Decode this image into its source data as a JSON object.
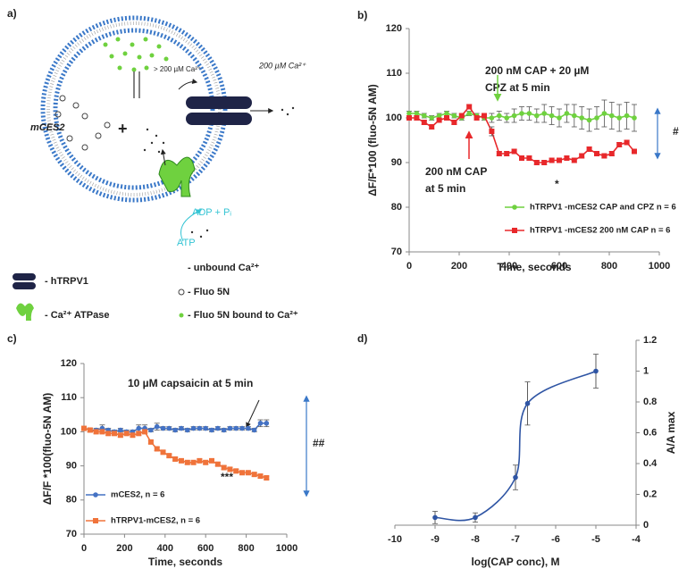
{
  "diagram": {
    "label": "a)",
    "outside_ca": "200 µM Ca²⁺",
    "inside_ca": "> 200 µM Ca²⁺",
    "protein": "mCES2",
    "products": "ADP + Pᵢ",
    "substrate": "ATP",
    "legend": [
      "- hTRPV1",
      "- Ca²⁺ ATPase",
      "- unbound Ca²⁺",
      "- Fluo 5N",
      "- Fluo 5N bound to Ca²⁺"
    ]
  },
  "chart_data": [
    {
      "type": "line",
      "label": "b)",
      "xlabel": "Time, seconds",
      "ylabel": "ΔF/F*100 (fluo-5N AM)",
      "xlim": [
        0,
        1000
      ],
      "xticks": [
        0,
        200,
        400,
        600,
        800,
        1000
      ],
      "ylim": [
        70,
        120
      ],
      "yticks": [
        70,
        80,
        90,
        100,
        110,
        120
      ],
      "legend_loc": "lower right",
      "annotations": [
        "200 nM CAP + 20 µM",
        "CPZ  at 5 min",
        "200 nM CAP",
        "at 5 min",
        "*",
        "#"
      ],
      "x": [
        0,
        30,
        60,
        90,
        120,
        150,
        180,
        210,
        240,
        270,
        300,
        330,
        360,
        390,
        420,
        450,
        480,
        510,
        540,
        570,
        600,
        630,
        660,
        690,
        720,
        750,
        780,
        810,
        840,
        870,
        900
      ],
      "series": [
        {
          "name": "hTRPV1 -mCES2  CAP and CPZ n = 6",
          "color": "#6fd13f",
          "marker": "circle",
          "values": [
            101,
            101,
            100.5,
            100,
            100.5,
            101,
            100.5,
            100,
            101,
            100.5,
            100,
            100,
            100.5,
            100,
            100.5,
            101,
            101,
            100.5,
            101,
            100.5,
            100,
            101,
            100.5,
            100,
            99.5,
            100,
            101,
            100.5,
            100,
            100.5,
            100
          ],
          "errors": [
            0.5,
            0.5,
            0.5,
            0.5,
            0.5,
            0.5,
            0.5,
            0.5,
            0.5,
            0.5,
            0.5,
            1,
            1,
            1,
            1.5,
            1.5,
            1.5,
            1.5,
            2,
            2,
            2,
            2,
            2.5,
            2.5,
            2.5,
            2.5,
            3,
            3,
            3,
            3,
            3
          ]
        },
        {
          "name": "hTRPV1 -mCES2   200 nM CAP  n = 6",
          "color": "#e8282b",
          "marker": "square",
          "values": [
            100,
            100,
            99,
            98,
            99.5,
            100,
            99,
            100.5,
            102.5,
            100,
            100.5,
            97,
            92,
            92,
            92.5,
            91,
            91,
            90,
            90,
            90.5,
            90.5,
            91,
            90.5,
            91.5,
            93,
            92,
            91.5,
            92,
            94,
            94.5,
            92.5
          ],
          "errors": [
            0.5,
            0.5,
            0.5,
            0.5,
            0.5,
            0.5,
            0.5,
            0.5,
            0.5,
            0.5,
            0.5,
            1,
            0.5,
            0.5,
            0.5,
            0.5,
            0.5,
            0.5,
            0.5,
            0.5,
            0.5,
            0.5,
            0.5,
            0.5,
            0.5,
            0.5,
            0.5,
            0.5,
            0.5,
            0.5,
            0.5
          ]
        }
      ]
    },
    {
      "type": "line",
      "label": "c)",
      "xlabel": "Time, seconds",
      "ylabel": "ΔF/F *100(fluo-5N AM)",
      "xlim": [
        0,
        1000
      ],
      "xticks": [
        0,
        200,
        400,
        600,
        800,
        1000
      ],
      "ylim": [
        70,
        120
      ],
      "yticks": [
        70,
        80,
        90,
        100,
        110,
        120
      ],
      "legend_loc": "lower left",
      "annotations": [
        "10 µM capsaicin at 5 min",
        "***",
        "##"
      ],
      "x": [
        0,
        30,
        60,
        90,
        120,
        150,
        180,
        210,
        240,
        270,
        300,
        330,
        360,
        390,
        420,
        450,
        480,
        510,
        540,
        570,
        600,
        630,
        660,
        690,
        720,
        750,
        780,
        810,
        840,
        870,
        900
      ],
      "series": [
        {
          "name": "mCES2, n = 6",
          "color": "#4472c4",
          "marker": "circle",
          "values": [
            101,
            100.5,
            100.5,
            101,
            100.5,
            100,
            100.5,
            100,
            100,
            101,
            101,
            100.5,
            101.5,
            101,
            101,
            100.5,
            101,
            100.5,
            101,
            101,
            101,
            100.5,
            101,
            100.5,
            101,
            101,
            101,
            101,
            100.5,
            102.5,
            102.5
          ],
          "errors": [
            0.5,
            0.5,
            0.5,
            1,
            0.5,
            0.5,
            0.5,
            0.5,
            0.5,
            1,
            1,
            0.5,
            1,
            0.5,
            0.5,
            0.5,
            0.5,
            0.5,
            0.5,
            0.5,
            0.5,
            0.5,
            0.5,
            0.5,
            0.5,
            0.5,
            0.5,
            0.5,
            0.5,
            1,
            1
          ]
        },
        {
          "name": "hTRPV1-mCES2, n = 6",
          "color": "#f0733a",
          "marker": "square",
          "values": [
            101,
            100.5,
            100,
            100,
            99.5,
            99.5,
            99,
            99.5,
            99,
            99.5,
            100,
            97,
            95,
            94,
            93,
            92,
            91.5,
            91,
            91,
            91.5,
            91,
            91.5,
            90.5,
            89.5,
            89,
            88.5,
            88,
            88,
            87.5,
            87,
            86.5
          ],
          "errors": [
            0.5,
            0.5,
            0.5,
            0.5,
            0.5,
            0.5,
            0.5,
            0.5,
            0.5,
            0.5,
            0.5,
            0.5,
            0.5,
            0.5,
            0.5,
            0.5,
            0.5,
            0.5,
            0.5,
            0.5,
            0.5,
            0.5,
            0.5,
            0.5,
            0.5,
            0.5,
            0.5,
            0.5,
            0.5,
            0.5,
            0.5
          ]
        }
      ]
    },
    {
      "type": "line",
      "label": "d)",
      "xlabel": "log(CAP conc), M",
      "ylabel": "A/A max",
      "y_axis_side": "right",
      "smooth": true,
      "xlim": [
        -10,
        -4
      ],
      "xticks": [
        -10,
        -9,
        -8,
        -7,
        -6,
        -5,
        -4
      ],
      "ylim": [
        0,
        1.2
      ],
      "yticks": [
        0,
        0.2,
        0.4,
        0.6,
        0.8,
        1,
        1.2
      ],
      "color": "#2f55a4",
      "marker": "circle",
      "x": [
        -9,
        -8,
        -7,
        -6.7,
        -5
      ],
      "values": [
        0.05,
        0.05,
        0.31,
        0.79,
        1.0
      ],
      "errors": [
        0.04,
        0.03,
        0.08,
        0.14,
        0.11
      ]
    }
  ]
}
